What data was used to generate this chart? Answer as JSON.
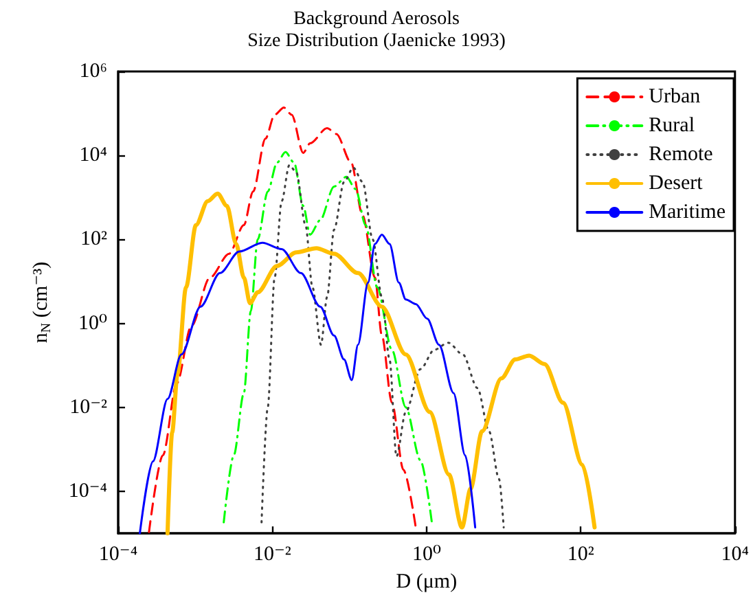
{
  "chart_data": {
    "type": "line",
    "title": "Background Aerosols",
    "subtitle": "Size Distribution (Jaenicke 1993)",
    "xlabel": "D (μm)",
    "ylabel": "n$_{N}$ (cm⁻³)",
    "log": "xy",
    "grid": false,
    "legend": "top right",
    "marker": "none",
    "xlim": [
      0.0001,
      10000
    ],
    "ylim": [
      1e-05,
      1000000
    ],
    "xticks": [
      {
        "value": 0.0001,
        "label": "10⁻⁴"
      },
      {
        "value": 0.01,
        "label": "10⁻²"
      },
      {
        "value": 1,
        "label": "10⁰"
      },
      {
        "value": 100,
        "label": "10²"
      },
      {
        "value": 10000,
        "label": "10⁴"
      }
    ],
    "yticks": [
      {
        "value": 0.0001,
        "label": "10⁻⁴"
      },
      {
        "value": 0.01,
        "label": "10⁻²"
      },
      {
        "value": 1,
        "label": "10⁰"
      },
      {
        "value": 100,
        "label": "10²"
      },
      {
        "value": 10000,
        "label": "10⁴"
      },
      {
        "value": 1000000,
        "label": "10⁶"
      }
    ],
    "series": [
      {
        "name": "Urban",
        "color": "#ff0000",
        "line_style": "dashed",
        "x": [
          0.000251,
          0.00038,
          0.000575,
          0.000891,
          0.00155,
          0.00275,
          0.00427,
          0.00562,
          0.00813,
          0.0107,
          0.0141,
          0.0178,
          0.0251,
          0.0309,
          0.0513,
          0.0676,
          0.105,
          0.148,
          0.214,
          0.263,
          0.355,
          0.501,
          0.724
        ],
        "values": [
          1.07e-05,
          0.000724,
          0.0372,
          0.871,
          12.3,
          45.7,
          219,
          1380,
          25100,
          93300,
          138000,
          93300,
          11500,
          19500,
          44700,
          32400,
          6760,
          372,
          12.3,
          0.513,
          0.0129,
          0.000324,
          1.38e-05
        ]
      },
      {
        "name": "Rural",
        "color": "#00ff00",
        "line_style": "dashdot",
        "x": [
          0.00234,
          0.00316,
          0.00427,
          0.00525,
          0.00646,
          0.00871,
          0.0115,
          0.0148,
          0.0191,
          0.0251,
          0.0309,
          0.0417,
          0.0631,
          0.0912,
          0.12,
          0.162,
          0.229,
          0.355,
          0.537,
          0.832,
          1.17
        ],
        "values": [
          1.82e-05,
          0.000724,
          0.0219,
          1.95,
          100,
          1380,
          6760,
          12000,
          6760,
          631,
          129,
          288,
          1820,
          3090,
          1580,
          219,
          7.24,
          0.234,
          0.01,
          0.00055,
          1.82e-05
        ]
      },
      {
        "name": "Remote",
        "color": "#404040",
        "line_style": "dotted",
        "x": [
          0.00724,
          0.00871,
          0.0107,
          0.0132,
          0.0166,
          0.0204,
          0.0269,
          0.0331,
          0.0427,
          0.0513,
          0.0631,
          0.0851,
          0.112,
          0.148,
          0.2,
          0.263,
          0.331,
          0.407,
          0.537,
          0.832,
          1.26,
          1.91,
          2.95,
          4.57,
          6.46,
          8.71,
          10
        ],
        "values": [
          1.82e-05,
          0.01,
          12.3,
          813,
          5890,
          3980,
          219,
          7.24,
          0.309,
          4.27,
          170,
          2340,
          5130,
          2340,
          100,
          4.27,
          0.138,
          0.000676,
          0.00776,
          0.0813,
          0.234,
          0.347,
          0.182,
          0.0288,
          0.00269,
          0.000195,
          1.38e-05
        ]
      },
      {
        "name": "Desert",
        "color": "#ffbf00",
        "line_style": "solid",
        "x": [
          0.000437,
          0.000501,
          0.000589,
          0.000759,
          0.00102,
          0.00145,
          0.00195,
          0.00257,
          0.00339,
          0.00427,
          0.00513,
          0.00646,
          0.0115,
          0.0204,
          0.0372,
          0.0631,
          0.129,
          0.263,
          0.537,
          1.1,
          1.95,
          2.88,
          3.72,
          5.25,
          9.33,
          14.1,
          21.4,
          33.9,
          58.9,
          105,
          151
        ],
        "values": [
          1e-05,
          0.00251,
          0.0631,
          7.24,
          219,
          813,
          1230,
          631,
          77.6,
          12.3,
          3.02,
          5.5,
          23.4,
          49,
          61.7,
          45.7,
          15.8,
          2.51,
          0.182,
          0.00776,
          0.000251,
          1.38e-05,
          0.000115,
          0.00269,
          0.049,
          0.138,
          0.17,
          0.107,
          0.0129,
          0.000427,
          1.38e-05
        ]
      },
      {
        "name": "Maritime",
        "color": "#0000ff",
        "line_style": "solid",
        "x": [
          0.000191,
          0.000282,
          0.000437,
          0.000661,
          0.00117,
          0.00209,
          0.00372,
          0.00741,
          0.0132,
          0.0234,
          0.0417,
          0.0631,
          0.0851,
          0.107,
          0.129,
          0.174,
          0.214,
          0.263,
          0.331,
          0.437,
          0.537,
          0.724,
          1.02,
          1.45,
          2.24,
          3.16,
          4.27
        ],
        "values": [
          1e-05,
          0.000513,
          0.0158,
          0.182,
          2.51,
          15.8,
          51.3,
          83.2,
          58.9,
          15.8,
          2.51,
          0.513,
          0.138,
          0.0447,
          0.309,
          9.33,
          77.6,
          129,
          77.6,
          9.33,
          3.72,
          2.88,
          1.29,
          0.309,
          0.0219,
          0.000724,
          1.38e-05
        ]
      }
    ]
  }
}
